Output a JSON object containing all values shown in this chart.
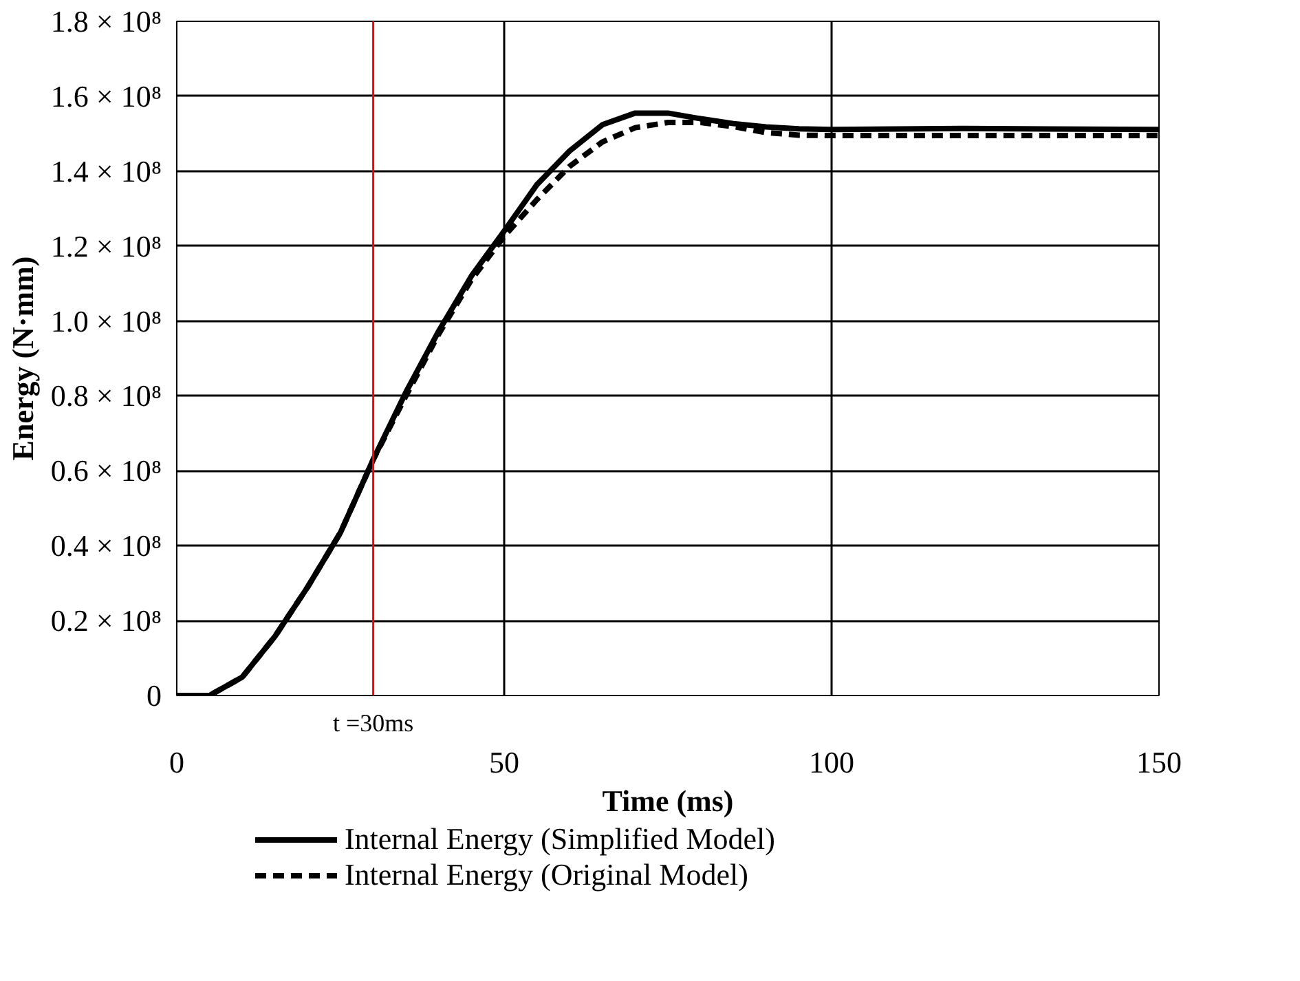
{
  "chart_data": {
    "type": "line",
    "xlabel": "Time (ms)",
    "ylabel": "Energy (N·mm)",
    "x": [
      0,
      5,
      10,
      15,
      20,
      25,
      30,
      35,
      40,
      45,
      50,
      55,
      60,
      65,
      70,
      75,
      80,
      85,
      90,
      95,
      100,
      120,
      150
    ],
    "series": [
      {
        "name": "Internal Energy (Simplified Model)",
        "color": "#000000",
        "line_style": "solid",
        "values": [
          0,
          0,
          4900000,
          15800000,
          29000000,
          43500000,
          63000000,
          81000000,
          97300000,
          112000000,
          124000000,
          136400000,
          145400000,
          152400000,
          155500000,
          155500000,
          154000000,
          152700000,
          151800000,
          151300000,
          151100000,
          151400000,
          151100000
        ]
      },
      {
        "name": "Internal Energy (Original Model)",
        "color": "#000000",
        "line_style": "dashed",
        "values": [
          0,
          0,
          4900000,
          15800000,
          29000000,
          43500000,
          63000000,
          80000000,
          96500000,
          111000000,
          122600000,
          132400000,
          141300000,
          147800000,
          151600000,
          153000000,
          153000000,
          151900000,
          150300000,
          149600000,
          149500000,
          149500000,
          149500000
        ]
      }
    ],
    "xlim": [
      0,
      150
    ],
    "xticks": [
      0,
      50,
      100,
      150
    ],
    "ylim": [
      0,
      180000000
    ],
    "yticks": [
      0,
      {
        "value": 20000000,
        "label": "0.2 × 10⁸"
      },
      {
        "value": 40000000,
        "label": "0.4 × 10⁸"
      },
      {
        "value": 60000000,
        "label": "0.6 × 10⁸"
      },
      {
        "value": 80000000,
        "label": "0.8 × 10⁸"
      },
      {
        "value": 100000000,
        "label": "1.0 × 10⁸"
      },
      {
        "value": 120000000,
        "label": "1.2 × 10⁸"
      },
      {
        "value": 140000000,
        "label": "1.4 × 10⁸"
      },
      {
        "value": 160000000,
        "label": "1.6 × 10⁸"
      },
      {
        "value": 180000000,
        "label": "1.8 × 10⁸"
      }
    ],
    "ref_lines": [
      {
        "axis": "x",
        "value": 30,
        "label": "t =30ms",
        "color": "#ff0000"
      }
    ],
    "grid": true,
    "legend": "bottom",
    "marker": "none"
  }
}
